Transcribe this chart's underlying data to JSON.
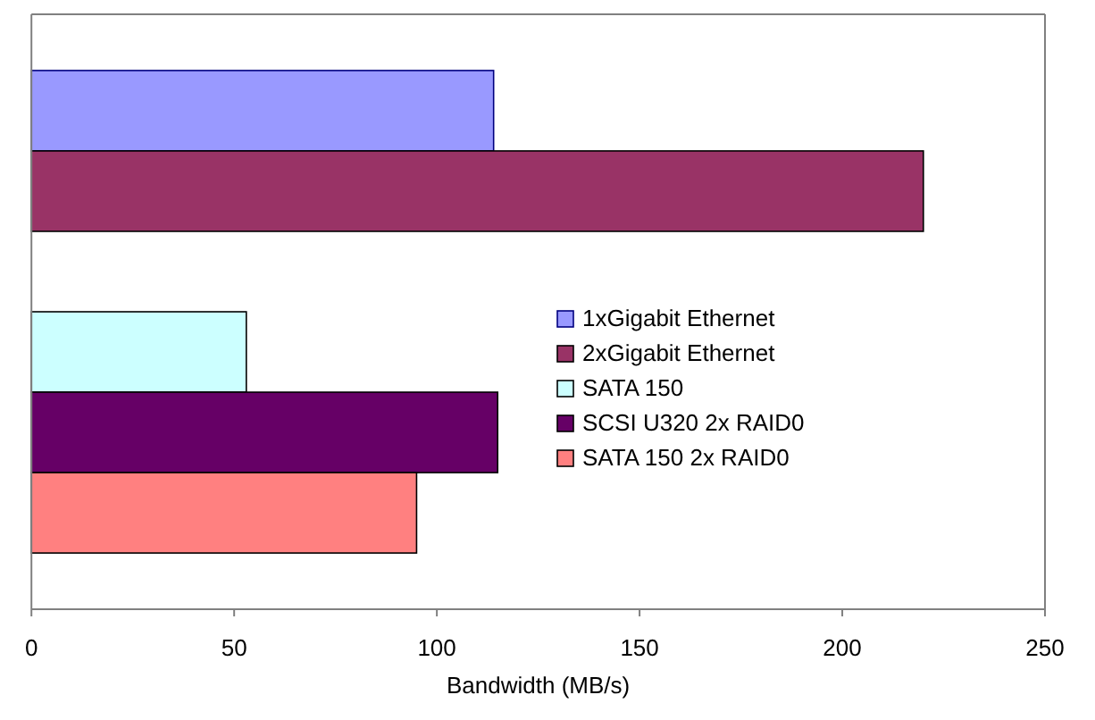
{
  "chart_data": {
    "type": "bar",
    "orientation": "horizontal",
    "xlabel": "Bandwidth (MB/s)",
    "categories": [
      null,
      null
    ],
    "series": [
      {
        "name": "1xGigabit Ethernet",
        "color": "#9999ff",
        "values": [
          114,
          null
        ]
      },
      {
        "name": "2xGigabit Ethernet",
        "color": "#993366",
        "values": [
          220,
          null
        ]
      },
      {
        "name": "SATA 150",
        "color": "#ccffff",
        "values": [
          null,
          53
        ]
      },
      {
        "name": "SCSI U320 2x RAID0",
        "color": "#660066",
        "values": [
          null,
          115
        ]
      },
      {
        "name": "SATA 150 2x RAID0",
        "color": "#ff8080",
        "values": [
          null,
          95
        ]
      }
    ],
    "xlim": [
      0,
      250
    ],
    "xticks": [
      0,
      50,
      100,
      150,
      200,
      250
    ],
    "tick_labels": "x",
    "grid": false,
    "legend": "right"
  }
}
